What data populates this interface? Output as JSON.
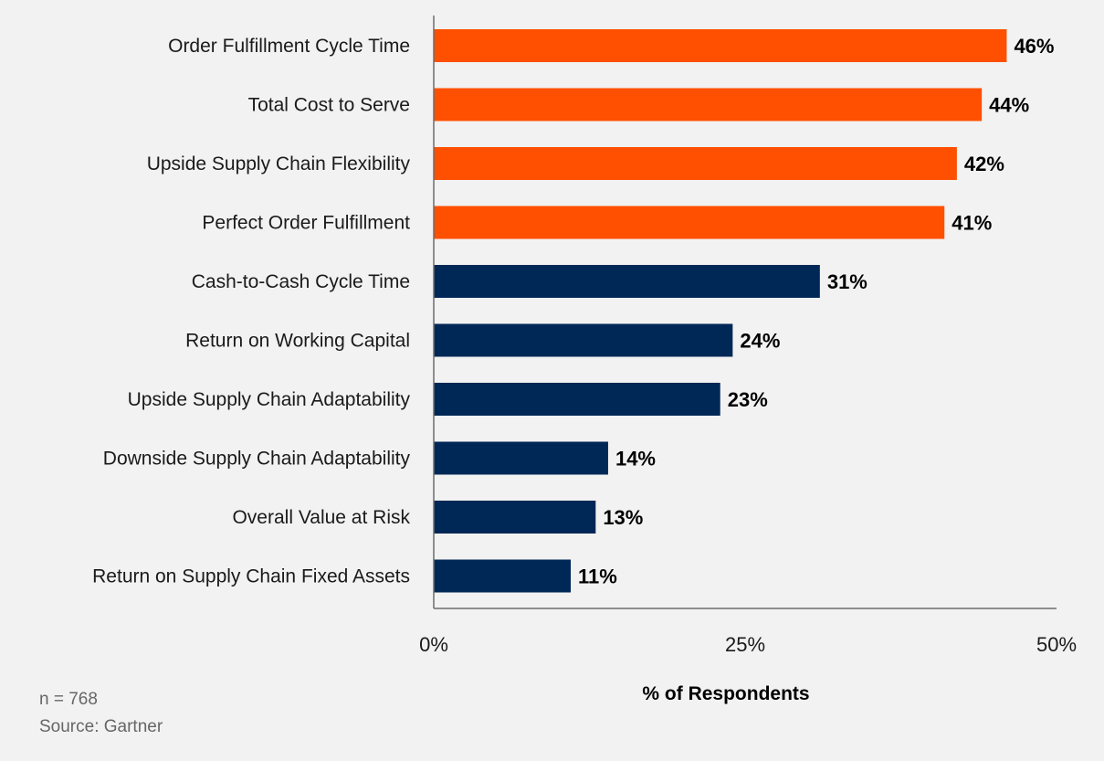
{
  "chart_data": {
    "type": "bar",
    "orientation": "horizontal",
    "categories": [
      "Order Fulfillment Cycle Time",
      "Total Cost to Serve",
      "Upside Supply Chain Flexibility",
      "Perfect Order Fulfillment",
      "Cash-to-Cash Cycle Time",
      "Return on Working Capital",
      "Upside Supply Chain Adaptability",
      "Downside Supply Chain Adaptability",
      "Overall Value at Risk",
      "Return on Supply Chain Fixed Assets"
    ],
    "values": [
      46,
      44,
      42,
      41,
      31,
      24,
      23,
      14,
      13,
      11
    ],
    "value_labels": [
      "46%",
      "44%",
      "42%",
      "41%",
      "31%",
      "24%",
      "23%",
      "14%",
      "13%",
      "11%"
    ],
    "highlighted": [
      true,
      true,
      true,
      true,
      false,
      false,
      false,
      false,
      false,
      false
    ],
    "xlim": [
      0,
      50
    ],
    "xticks": [
      0,
      25,
      50
    ],
    "xtick_labels": [
      "0%",
      "25%",
      "50%"
    ],
    "xlabel": "% of Respondents",
    "grid": false,
    "colors": {
      "highlight": "#fe5000",
      "default": "#002856"
    }
  },
  "notes": {
    "n": "n = 768",
    "source": "Source: Gartner"
  }
}
